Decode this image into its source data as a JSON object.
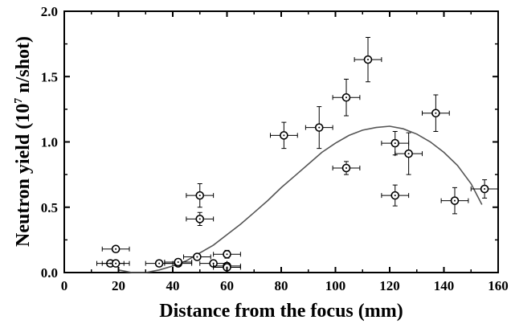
{
  "chart_data": {
    "type": "scatter",
    "title": "",
    "xlabel": "Distance from the focus (mm)",
    "ylabel_parts": {
      "before": "Neutron yield (10",
      "sup": "7",
      "after": " n/shot)"
    },
    "xlim": [
      0,
      160
    ],
    "ylim": [
      0,
      2.0
    ],
    "xticks": [
      0,
      20,
      40,
      60,
      80,
      100,
      120,
      140,
      160
    ],
    "yticks": [
      0.0,
      0.5,
      1.0,
      1.5,
      2.0
    ],
    "ytick_labels": [
      "0.0",
      "0.5",
      "1.0",
      "1.5",
      "2.0"
    ],
    "grid": false,
    "legend": "none",
    "marker": "open-circle-with-dot",
    "points": [
      {
        "x": 17,
        "y": 0.07,
        "xerr": 5,
        "yerr": 0.02
      },
      {
        "x": 19,
        "y": 0.07,
        "xerr": 5,
        "yerr": 0.02
      },
      {
        "x": 19,
        "y": 0.18,
        "xerr": 5,
        "yerr": 0.02
      },
      {
        "x": 35,
        "y": 0.07,
        "xerr": 5,
        "yerr": 0.02
      },
      {
        "x": 42,
        "y": 0.07,
        "xerr": 5,
        "yerr": 0.02
      },
      {
        "x": 42,
        "y": 0.08,
        "xerr": 5,
        "yerr": 0.02
      },
      {
        "x": 49,
        "y": 0.12,
        "xerr": 5,
        "yerr": 0.02
      },
      {
        "x": 50,
        "y": 0.41,
        "xerr": 5,
        "yerr": 0.05
      },
      {
        "x": 50,
        "y": 0.59,
        "xerr": 5,
        "yerr": 0.09
      },
      {
        "x": 55,
        "y": 0.07,
        "xerr": 5,
        "yerr": 0.02
      },
      {
        "x": 60,
        "y": 0.05,
        "xerr": 5,
        "yerr": 0.02
      },
      {
        "x": 60,
        "y": 0.04,
        "xerr": 5,
        "yerr": 0.02
      },
      {
        "x": 60,
        "y": 0.14,
        "xerr": 5,
        "yerr": 0.03
      },
      {
        "x": 81,
        "y": 1.05,
        "xerr": 5,
        "yerr": 0.1
      },
      {
        "x": 94,
        "y": 1.11,
        "xerr": 5,
        "yerr": 0.16
      },
      {
        "x": 104,
        "y": 1.34,
        "xerr": 5,
        "yerr": 0.14
      },
      {
        "x": 104,
        "y": 0.8,
        "xerr": 5,
        "yerr": 0.05
      },
      {
        "x": 112,
        "y": 1.63,
        "xerr": 5,
        "yerr": 0.17
      },
      {
        "x": 122,
        "y": 0.99,
        "xerr": 5,
        "yerr": 0.09
      },
      {
        "x": 122,
        "y": 0.59,
        "xerr": 5,
        "yerr": 0.08
      },
      {
        "x": 127,
        "y": 0.91,
        "xerr": 5,
        "yerr": 0.16
      },
      {
        "x": 137,
        "y": 1.22,
        "xerr": 5,
        "yerr": 0.14
      },
      {
        "x": 144,
        "y": 0.55,
        "xerr": 5,
        "yerr": 0.1
      },
      {
        "x": 155,
        "y": 0.64,
        "xerr": 5,
        "yerr": 0.07
      }
    ],
    "fit_curve": {
      "x": [
        20,
        25,
        30,
        35,
        40,
        45,
        50,
        55,
        60,
        65,
        70,
        75,
        80,
        85,
        90,
        95,
        100,
        105,
        110,
        115,
        120,
        125,
        130,
        135,
        140,
        145,
        150,
        154
      ],
      "y": [
        0.02,
        0.0,
        0.0,
        0.02,
        0.05,
        0.09,
        0.15,
        0.21,
        0.29,
        0.37,
        0.46,
        0.55,
        0.65,
        0.74,
        0.83,
        0.92,
        0.99,
        1.05,
        1.09,
        1.11,
        1.12,
        1.1,
        1.06,
        1.0,
        0.92,
        0.82,
        0.68,
        0.52
      ]
    },
    "colors": {
      "marker": "#000000",
      "curve": "#555555",
      "axis": "#000000"
    }
  }
}
